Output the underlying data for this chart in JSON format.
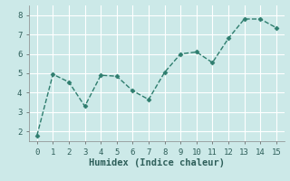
{
  "x": [
    0,
    1,
    2,
    3,
    4,
    5,
    6,
    7,
    8,
    9,
    10,
    11,
    12,
    13,
    14,
    15
  ],
  "y": [
    1.8,
    4.95,
    4.55,
    3.3,
    4.9,
    4.85,
    4.1,
    3.65,
    5.05,
    6.0,
    6.1,
    5.55,
    6.8,
    7.8,
    7.8,
    7.35
  ],
  "line_color": "#2e7d6e",
  "marker": "D",
  "marker_size": 2.5,
  "xlabel": "Humidex (Indice chaleur)",
  "xlim": [
    -0.5,
    15.5
  ],
  "ylim": [
    1.5,
    8.5
  ],
  "yticks": [
    2,
    3,
    4,
    5,
    6,
    7,
    8
  ],
  "xticks": [
    0,
    1,
    2,
    3,
    4,
    5,
    6,
    7,
    8,
    9,
    10,
    11,
    12,
    13,
    14,
    15
  ],
  "background_color": "#cce9e8",
  "grid_color": "#ffffff",
  "tick_label_fontsize": 6.5,
  "xlabel_fontsize": 7.5,
  "line_width": 1.0
}
